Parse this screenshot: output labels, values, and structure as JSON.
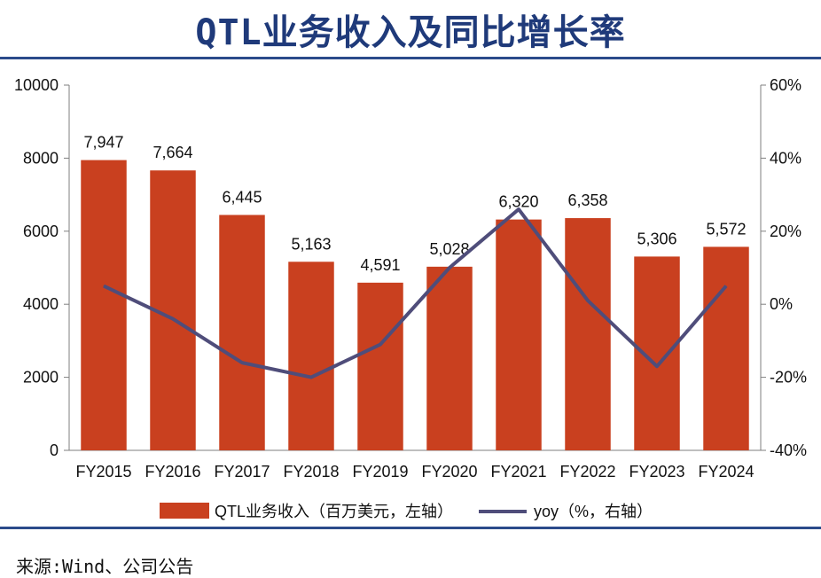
{
  "title": "QTL业务收入及同比增长率",
  "source": "来源:Wind、公司公告",
  "colors": {
    "bar": "#c9401f",
    "line": "#4f4d7a",
    "title": "#1f3a7a"
  },
  "chart_data": {
    "type": "bar",
    "title": "QTL业务收入及同比增长率",
    "categories": [
      "FY2015",
      "FY2016",
      "FY2017",
      "FY2018",
      "FY2019",
      "FY2020",
      "FY2021",
      "FY2022",
      "FY2023",
      "FY2024"
    ],
    "series": [
      {
        "name": "QTL业务收入（百万美元，左轴）",
        "type": "bar",
        "axis": "left",
        "values": [
          7947,
          7664,
          6445,
          5163,
          4591,
          5028,
          6320,
          6358,
          5306,
          5572
        ],
        "labels": [
          "7,947",
          "7,664",
          "6,445",
          "5,163",
          "4,591",
          "5,028",
          "6,320",
          "6,358",
          "5,306",
          "5,572"
        ]
      },
      {
        "name": "yoy（%，右轴）",
        "type": "line",
        "axis": "right",
        "values": [
          5,
          -4,
          -16,
          -20,
          -11,
          10,
          26,
          1,
          -17,
          5
        ]
      }
    ],
    "left_axis": {
      "min": 0,
      "max": 10000,
      "ticks": [
        "0",
        "2000",
        "4000",
        "6000",
        "8000",
        "10000"
      ]
    },
    "right_axis": {
      "min": -40,
      "max": 60,
      "ticks": [
        "-40%",
        "-20%",
        "0%",
        "20%",
        "40%",
        "60%"
      ]
    },
    "legend": [
      {
        "label": "QTL业务收入（百万美元，左轴）",
        "kind": "bar"
      },
      {
        "label": "yoy（%，右轴）",
        "kind": "line"
      }
    ],
    "legend_position": "bottom"
  }
}
